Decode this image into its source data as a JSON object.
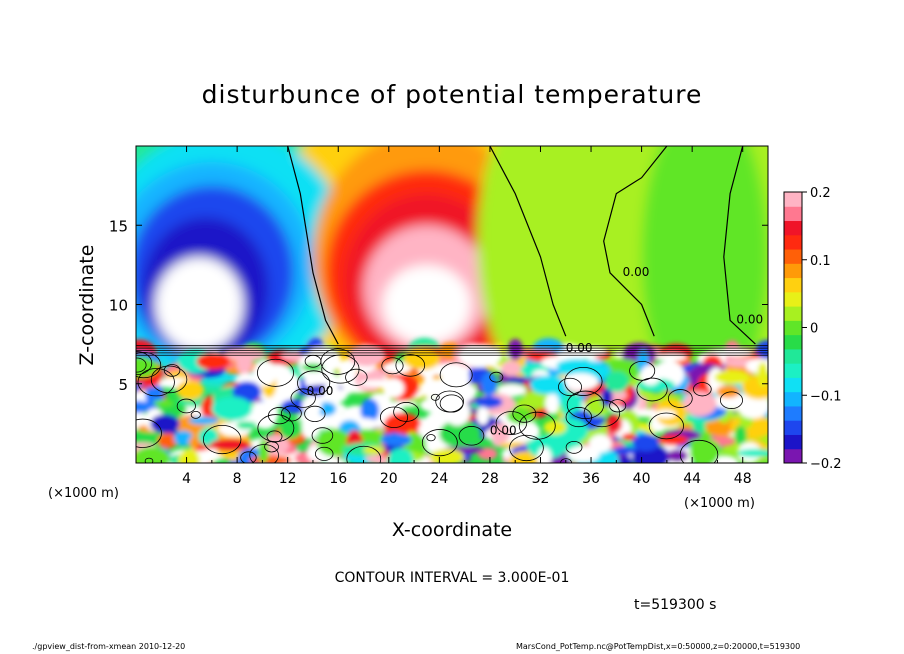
{
  "chart_data": {
    "type": "heatmap",
    "title": "disturbunce of potential temperature",
    "xlabel": "X-coordinate",
    "ylabel": "Z-coordinate",
    "x_unit": "(×1000 m)",
    "y_unit": "(×1000 m)",
    "xlim": [
      0,
      50
    ],
    "ylim": [
      0,
      20
    ],
    "x_ticks": [
      "4",
      "8",
      "12",
      "16",
      "20",
      "24",
      "28",
      "32",
      "36",
      "40",
      "44",
      "48"
    ],
    "x_tick_values": [
      4,
      8,
      12,
      16,
      20,
      24,
      28,
      32,
      36,
      40,
      44,
      48
    ],
    "y_ticks": [
      "5",
      "10",
      "15"
    ],
    "y_tick_values": [
      5,
      10,
      15
    ],
    "colorbar": {
      "range": [
        -0.2,
        0.2
      ],
      "tick_labels": [
        "0.2",
        "0.1",
        "0",
        "−0.1",
        "−0.2"
      ],
      "tick_values": [
        0.2,
        0.1,
        0,
        -0.1,
        -0.2
      ],
      "colors": [
        "#7a16b0",
        "#1c14c8",
        "#1e46ee",
        "#1e7cff",
        "#12b4ff",
        "#10e0f4",
        "#1cf0c4",
        "#20e898",
        "#28dc48",
        "#60e628",
        "#a8f020",
        "#e8f018",
        "#ffd010",
        "#ff9a08",
        "#ff6008",
        "#ff2a10",
        "#f01428",
        "#ff7890",
        "#ffb4c4"
      ]
    },
    "contour_interval": "CONTOUR INTERVAL = 3.000E-01",
    "contour_labels": [
      "0.00",
      "0.00",
      "0.00",
      "0.00",
      "0.00"
    ],
    "time_label": "t=519300 s",
    "features": [
      {
        "value": -0.2,
        "x": 6,
        "z": 14,
        "desc": "cold anomaly aloft"
      },
      {
        "value": 0.2,
        "x": 23,
        "z": 12,
        "desc": "warm anomaly aloft"
      },
      {
        "value": 0.0,
        "x": 45,
        "z": 13,
        "desc": "near-zero region"
      }
    ]
  },
  "footer": {
    "left": "./gpview_dist-from-xmean  2010-12-20",
    "right": "MarsCond_PotTemp.nc@PotTempDist,x=0:50000,z=0:20000,t=519300"
  }
}
